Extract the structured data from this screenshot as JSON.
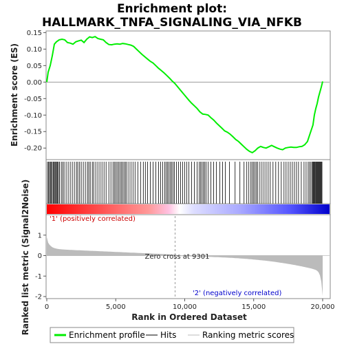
{
  "chart_data": {
    "type": "line",
    "title_line1": "Enrichment plot:",
    "title_line2": "HALLMARK_TNFA_SIGNALING_VIA_NFKB",
    "xlabel": "Rank in Ordered Dataset",
    "top_ylabel": "Enrichment score (ES)",
    "bottom_ylabel": "Ranked list metric (Signal2Noise)",
    "xlim": [
      0,
      20500
    ],
    "top_ylim": [
      -0.235,
      0.155
    ],
    "bottom_ylim": [
      -2.1,
      2.0
    ],
    "x_ticks": [
      0,
      5000,
      10000,
      15000,
      20000
    ],
    "x_tick_labels": [
      "0",
      "5,000",
      "10,000",
      "15,000",
      "20,000"
    ],
    "top_y_ticks": [
      0.15,
      0.1,
      0.05,
      0.0,
      -0.05,
      -0.1,
      -0.15,
      -0.2
    ],
    "top_y_tick_labels": [
      "0.15",
      "0.10",
      "0.05",
      "0.00",
      "-0.05",
      "-0.10",
      "-0.15",
      "-0.20"
    ],
    "bottom_y_ticks": [
      1,
      0,
      -1,
      -2
    ],
    "bottom_y_tick_labels": [
      "1",
      "0",
      "-1",
      "-2"
    ],
    "zero_cross": 9301,
    "zero_cross_label": "Zero cross at 9301",
    "positive_label": "'1' (positively correlated)",
    "negative_label": "'2' (negatively correlated)",
    "es_profile": {
      "name": "Enrichment profile",
      "color": "#00ee00",
      "x": [
        0,
        100,
        250,
        400,
        550,
        700,
        900,
        1100,
        1300,
        1500,
        1700,
        1900,
        2100,
        2300,
        2500,
        2700,
        2900,
        3100,
        3300,
        3500,
        3700,
        3900,
        4100,
        4300,
        4500,
        4700,
        4900,
        5100,
        5300,
        5500,
        5700,
        5900,
        6100,
        6300,
        6500,
        6700,
        6900,
        7100,
        7300,
        7500,
        7700,
        7900,
        8100,
        8300,
        8500,
        8700,
        8900,
        9100,
        9300,
        9500,
        9700,
        9900,
        10100,
        10300,
        10500,
        10700,
        10900,
        11100,
        11300,
        11500,
        11700,
        11900,
        12100,
        12300,
        12500,
        12700,
        12900,
        13100,
        13300,
        13500,
        13700,
        13900,
        14100,
        14300,
        14500,
        14700,
        14900,
        15100,
        15300,
        15500,
        15700,
        15900,
        16100,
        16300,
        16500,
        16700,
        16900,
        17100,
        17300,
        17500,
        17700,
        17900,
        18100,
        18300,
        18500,
        18700,
        18900,
        19100,
        19300,
        19400,
        19500,
        19600,
        19700,
        19800,
        19900,
        20000
      ],
      "values": [
        0.0,
        0.03,
        0.05,
        0.08,
        0.115,
        0.122,
        0.128,
        0.13,
        0.128,
        0.12,
        0.118,
        0.115,
        0.122,
        0.125,
        0.127,
        0.12,
        0.13,
        0.137,
        0.135,
        0.138,
        0.132,
        0.13,
        0.128,
        0.12,
        0.114,
        0.113,
        0.115,
        0.116,
        0.115,
        0.117,
        0.116,
        0.114,
        0.112,
        0.108,
        0.1,
        0.092,
        0.084,
        0.077,
        0.07,
        0.063,
        0.058,
        0.05,
        0.042,
        0.035,
        0.028,
        0.02,
        0.012,
        0.003,
        -0.005,
        -0.015,
        -0.025,
        -0.035,
        -0.045,
        -0.055,
        -0.064,
        -0.072,
        -0.08,
        -0.09,
        -0.097,
        -0.098,
        -0.1,
        -0.108,
        -0.115,
        -0.124,
        -0.132,
        -0.14,
        -0.148,
        -0.152,
        -0.158,
        -0.166,
        -0.174,
        -0.18,
        -0.188,
        -0.196,
        -0.204,
        -0.21,
        -0.214,
        -0.208,
        -0.2,
        -0.195,
        -0.198,
        -0.2,
        -0.196,
        -0.192,
        -0.196,
        -0.2,
        -0.203,
        -0.205,
        -0.2,
        -0.198,
        -0.197,
        -0.198,
        -0.198,
        -0.196,
        -0.195,
        -0.19,
        -0.18,
        -0.155,
        -0.13,
        -0.1,
        -0.08,
        -0.065,
        -0.045,
        -0.03,
        -0.015,
        0.002
      ]
    },
    "hits_legend": "Hits",
    "ranking_legend": "Ranking metric scores",
    "hit_positions": [
      50,
      120,
      200,
      260,
      330,
      400,
      470,
      540,
      600,
      650,
      720,
      780,
      850,
      920,
      1050,
      1150,
      1250,
      1400,
      1550,
      1700,
      1850,
      2000,
      2150,
      2250,
      2380,
      2500,
      2650,
      2800,
      2950,
      3050,
      3150,
      3300,
      3400,
      3550,
      3700,
      3850,
      4000,
      4150,
      4300,
      4500,
      4650,
      4800,
      4900,
      5000,
      5100,
      5200,
      5300,
      5400,
      5500,
      5600,
      5700,
      5800,
      5950,
      6100,
      6250,
      6400,
      6600,
      6800,
      7000,
      7150,
      7300,
      7500,
      7700,
      7900,
      8100,
      8250,
      8400,
      8550,
      8650,
      8750,
      8850,
      8950,
      9050,
      9150,
      9250,
      9400,
      9550,
      9700,
      9850,
      10000,
      10150,
      10300,
      10500,
      10700,
      10900,
      11050,
      11150,
      11250,
      11350,
      11450,
      11550,
      11700,
      11900,
      12100,
      12300,
      12550,
      12750,
      12950,
      13250,
      13650,
      14000,
      14300,
      14500,
      14650,
      14800,
      14900,
      15000,
      15100,
      15200,
      15300,
      15450,
      15600,
      15750,
      15900,
      16050,
      16200,
      16400,
      16600,
      16800,
      17000,
      17200,
      17350,
      17500,
      17650,
      17800,
      17950,
      18100,
      18250,
      18450,
      18650,
      18800,
      18950,
      19050,
      19150,
      19250,
      19300,
      19350,
      19400,
      19450,
      19500,
      19550,
      19600,
      19650,
      19700,
      19750,
      19800,
      19850,
      19900,
      19950
    ],
    "bar_colors": [
      "#ff0000",
      "#ffffff",
      "#0000ff"
    ]
  }
}
